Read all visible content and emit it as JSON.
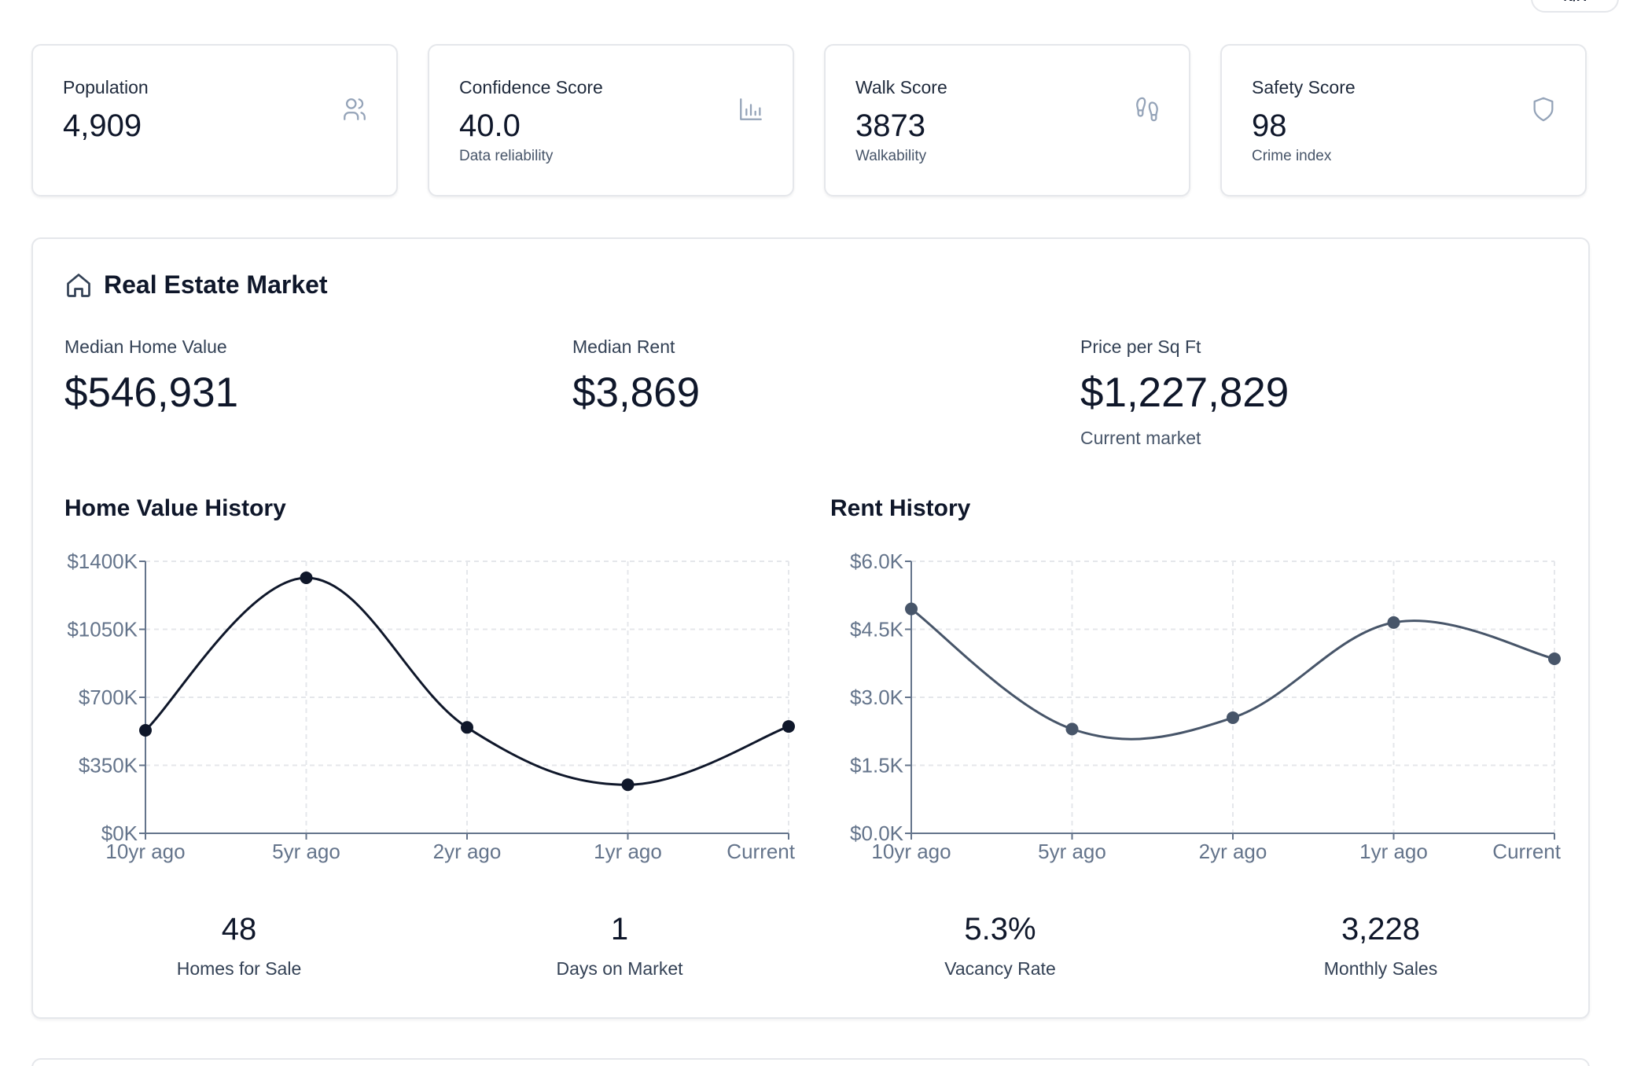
{
  "header": {
    "badge": "N/A"
  },
  "stats": [
    {
      "label": "Population",
      "value": "4,909",
      "sub": "",
      "icon": "users-icon"
    },
    {
      "label": "Confidence Score",
      "value": "40.0",
      "sub": "Data reliability",
      "icon": "bar-chart-icon"
    },
    {
      "label": "Walk Score",
      "value": "3873",
      "sub": "Walkability",
      "icon": "footprints-icon"
    },
    {
      "label": "Safety Score",
      "value": "98",
      "sub": "Crime index",
      "icon": "shield-icon"
    }
  ],
  "market": {
    "title": "Real Estate Market",
    "icon": "home-icon",
    "metrics": [
      {
        "label": "Median Home Value",
        "value": "$546,931",
        "sub": ""
      },
      {
        "label": "Median Rent",
        "value": "$3,869",
        "sub": ""
      },
      {
        "label": "Price per Sq Ft",
        "value": "$1,227,829",
        "sub": "Current market"
      }
    ],
    "bottom_stats": [
      {
        "value": "48",
        "label": "Homes for Sale"
      },
      {
        "value": "1",
        "label": "Days on Market"
      },
      {
        "value": "5.3%",
        "label": "Vacancy Rate"
      },
      {
        "value": "3,228",
        "label": "Monthly Sales"
      }
    ]
  },
  "colors": {
    "home_line": "#0f172a",
    "rent_line": "#475569",
    "grid": "#e5e7eb",
    "axis": "#64748b"
  },
  "chart_data": [
    {
      "type": "line",
      "title": "Home Value History",
      "categories": [
        "10yr ago",
        "5yr ago",
        "2yr ago",
        "1yr ago",
        "Current"
      ],
      "values": [
        530000,
        1315000,
        545000,
        250000,
        550000
      ],
      "ylim": [
        0,
        1400000
      ],
      "yticks": [
        0,
        350000,
        700000,
        1050000,
        1400000
      ],
      "ytick_labels": [
        "$0K",
        "$350K",
        "$700K",
        "$1050K",
        "$1400K"
      ],
      "xlabel": "",
      "ylabel": "",
      "grid": true
    },
    {
      "type": "line",
      "title": "Rent History",
      "categories": [
        "10yr ago",
        "5yr ago",
        "2yr ago",
        "1yr ago",
        "Current"
      ],
      "values": [
        4950,
        2300,
        2550,
        4650,
        3850
      ],
      "ylim": [
        0,
        6000
      ],
      "yticks": [
        0,
        1500,
        3000,
        4500,
        6000
      ],
      "ytick_labels": [
        "$0.0K",
        "$1.5K",
        "$3.0K",
        "$4.5K",
        "$6.0K"
      ],
      "xlabel": "",
      "ylabel": "",
      "grid": true
    }
  ]
}
